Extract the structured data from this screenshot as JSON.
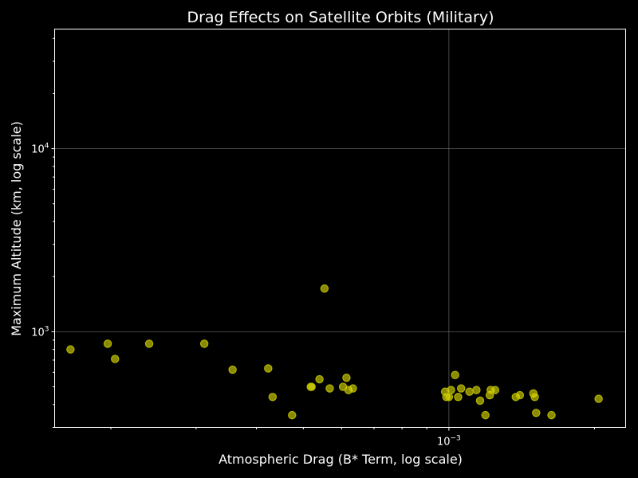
{
  "chart_data": {
    "type": "scatter",
    "title": "Drag Effects on Satellite Orbits (Military)",
    "xlabel": "Atmospheric Drag (B* Term, log scale)",
    "ylabel": "Maximum Altitude (km, log scale)",
    "x_scale": "log",
    "y_scale": "log",
    "xlim": [
      0.000153,
      0.00232
    ],
    "ylim": [
      300,
      45000
    ],
    "x_major_ticks": [
      {
        "value": 0.001,
        "base": "10",
        "exp": "−3"
      }
    ],
    "y_major_ticks": [
      {
        "value": 1000,
        "base": "10",
        "exp": "3"
      },
      {
        "value": 10000,
        "base": "10",
        "exp": "4"
      }
    ],
    "grid": true,
    "point_color": "#e6e600",
    "points": [
      {
        "x": 0.000165,
        "y": 800
      },
      {
        "x": 0.000197,
        "y": 860
      },
      {
        "x": 0.000204,
        "y": 710
      },
      {
        "x": 0.00024,
        "y": 860
      },
      {
        "x": 0.000312,
        "y": 860
      },
      {
        "x": 0.000357,
        "y": 620
      },
      {
        "x": 0.000423,
        "y": 630
      },
      {
        "x": 0.000432,
        "y": 440
      },
      {
        "x": 0.000474,
        "y": 350
      },
      {
        "x": 0.000518,
        "y": 500
      },
      {
        "x": 0.00052,
        "y": 500
      },
      {
        "x": 0.00054,
        "y": 550
      },
      {
        "x": 0.000553,
        "y": 1720
      },
      {
        "x": 0.000567,
        "y": 490
      },
      {
        "x": 0.000604,
        "y": 500
      },
      {
        "x": 0.000614,
        "y": 560
      },
      {
        "x": 0.00062,
        "y": 480
      },
      {
        "x": 0.000633,
        "y": 490
      },
      {
        "x": 0.000982,
        "y": 470
      },
      {
        "x": 0.000988,
        "y": 440
      },
      {
        "x": 0.001,
        "y": 440
      },
      {
        "x": 0.00101,
        "y": 480
      },
      {
        "x": 0.00103,
        "y": 580
      },
      {
        "x": 0.001045,
        "y": 440
      },
      {
        "x": 0.00106,
        "y": 490
      },
      {
        "x": 0.001103,
        "y": 470
      },
      {
        "x": 0.00114,
        "y": 480
      },
      {
        "x": 0.00116,
        "y": 420
      },
      {
        "x": 0.00119,
        "y": 350
      },
      {
        "x": 0.001215,
        "y": 450
      },
      {
        "x": 0.00122,
        "y": 480
      },
      {
        "x": 0.001246,
        "y": 480
      },
      {
        "x": 0.001375,
        "y": 440
      },
      {
        "x": 0.001402,
        "y": 450
      },
      {
        "x": 0.001495,
        "y": 460
      },
      {
        "x": 0.001505,
        "y": 440
      },
      {
        "x": 0.001515,
        "y": 360
      },
      {
        "x": 0.00163,
        "y": 350
      },
      {
        "x": 0.00204,
        "y": 430
      }
    ]
  }
}
